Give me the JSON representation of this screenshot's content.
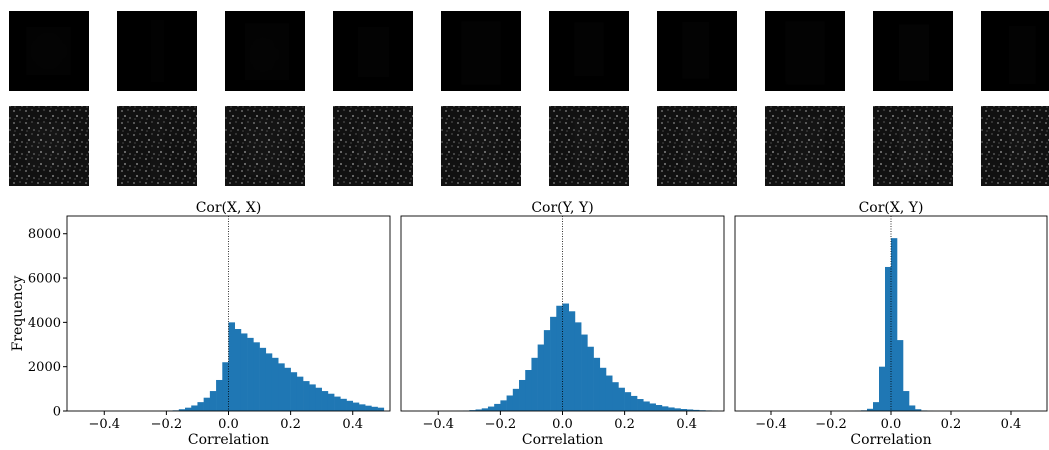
{
  "chart_data": [
    {
      "type": "histogram",
      "title": "Cor(X, X)",
      "x_label": "Correlation",
      "y_label": "Frequency",
      "color": "#1f77b4",
      "vline": 0,
      "xlim": [
        -0.52,
        0.52
      ],
      "ylim": [
        0,
        8800
      ],
      "xticks": [
        {
          "value": -0.4,
          "label": "−0.4"
        },
        {
          "value": -0.2,
          "label": "−0.2"
        },
        {
          "value": 0,
          "label": "0.0"
        },
        0.2,
        0.4
      ],
      "yticks": [
        0,
        2000,
        4000,
        6000,
        8000
      ],
      "bins": [
        -0.5,
        -0.48,
        -0.46,
        -0.44,
        -0.42,
        -0.4,
        -0.38,
        -0.36,
        -0.34,
        -0.32,
        -0.3,
        -0.28,
        -0.26,
        -0.24,
        -0.22,
        -0.2,
        -0.18,
        -0.16,
        -0.14,
        -0.12,
        -0.1,
        -0.08,
        -0.06,
        -0.04,
        -0.02,
        0,
        0.02,
        0.04,
        0.06,
        0.08,
        0.1,
        0.12,
        0.14,
        0.16,
        0.18,
        0.2,
        0.22,
        0.24,
        0.26,
        0.28,
        0.3,
        0.32,
        0.34,
        0.36,
        0.38,
        0.4,
        0.42,
        0.44,
        0.46,
        0.48,
        0.5
      ],
      "values": [
        0,
        0,
        0,
        0,
        0,
        0,
        0,
        0,
        0,
        0,
        0,
        0,
        0,
        0,
        0,
        10,
        30,
        80,
        150,
        250,
        400,
        600,
        900,
        1400,
        2200,
        4000,
        3700,
        3500,
        3300,
        3100,
        2850,
        2600,
        2400,
        2150,
        1950,
        1750,
        1550,
        1350,
        1200,
        1050,
        900,
        780,
        650,
        550,
        460,
        380,
        300,
        240,
        190,
        150
      ]
    },
    {
      "type": "histogram",
      "title": "Cor(Y, Y)",
      "x_label": "Correlation",
      "color": "#1f77b4",
      "vline": 0,
      "xlim": [
        -0.52,
        0.52
      ],
      "ylim": [
        0,
        8800
      ],
      "xticks": [
        {
          "value": -0.4,
          "label": "−0.4"
        },
        {
          "value": -0.2,
          "label": "−0.2"
        },
        {
          "value": 0,
          "label": "0.0"
        },
        0.2,
        0.4
      ],
      "bins": [
        -0.5,
        -0.48,
        -0.46,
        -0.44,
        -0.42,
        -0.4,
        -0.38,
        -0.36,
        -0.34,
        -0.32,
        -0.3,
        -0.28,
        -0.26,
        -0.24,
        -0.22,
        -0.2,
        -0.18,
        -0.16,
        -0.14,
        -0.12,
        -0.1,
        -0.08,
        -0.06,
        -0.04,
        -0.02,
        0,
        0.02,
        0.04,
        0.06,
        0.08,
        0.1,
        0.12,
        0.14,
        0.16,
        0.18,
        0.2,
        0.22,
        0.24,
        0.26,
        0.28,
        0.3,
        0.32,
        0.34,
        0.36,
        0.38,
        0.4,
        0.42,
        0.44,
        0.46,
        0.48,
        0.5
      ],
      "values": [
        0,
        0,
        0,
        0,
        0,
        0,
        0,
        5,
        10,
        20,
        40,
        70,
        120,
        200,
        320,
        480,
        700,
        1000,
        1400,
        1850,
        2400,
        3000,
        3650,
        4250,
        4750,
        4850,
        4500,
        4000,
        3450,
        2900,
        2400,
        1950,
        1600,
        1300,
        1050,
        850,
        680,
        540,
        430,
        340,
        270,
        210,
        160,
        120,
        90,
        70,
        50,
        35,
        25,
        15
      ]
    },
    {
      "type": "histogram",
      "title": "Cor(X, Y)",
      "x_label": "Correlation",
      "color": "#1f77b4",
      "vline": 0,
      "xlim": [
        -0.52,
        0.52
      ],
      "ylim": [
        0,
        8800
      ],
      "xticks": [
        {
          "value": -0.4,
          "label": "−0.4"
        },
        {
          "value": -0.2,
          "label": "−0.2"
        },
        {
          "value": 0,
          "label": "0.0"
        },
        0.2,
        0.4
      ],
      "bins": [
        -0.5,
        -0.48,
        -0.46,
        -0.44,
        -0.42,
        -0.4,
        -0.38,
        -0.36,
        -0.34,
        -0.32,
        -0.3,
        -0.28,
        -0.26,
        -0.24,
        -0.22,
        -0.2,
        -0.18,
        -0.16,
        -0.14,
        -0.12,
        -0.1,
        -0.08,
        -0.06,
        -0.04,
        -0.02,
        0,
        0.02,
        0.04,
        0.06,
        0.08,
        0.1,
        0.12,
        0.14,
        0.16,
        0.18,
        0.2,
        0.22,
        0.24,
        0.26,
        0.28,
        0.3,
        0.32,
        0.34,
        0.36,
        0.38,
        0.4,
        0.42,
        0.44,
        0.46,
        0.48,
        0.5
      ],
      "values": [
        0,
        0,
        0,
        0,
        0,
        0,
        0,
        0,
        0,
        0,
        0,
        0,
        0,
        0,
        0,
        0,
        0,
        0,
        0,
        10,
        30,
        100,
        400,
        2000,
        6500,
        7800,
        3200,
        900,
        250,
        80,
        25,
        8,
        0,
        0,
        0,
        0,
        0,
        0,
        0,
        0,
        0,
        0,
        0,
        0,
        0,
        0,
        0,
        0,
        0,
        0
      ]
    }
  ]
}
